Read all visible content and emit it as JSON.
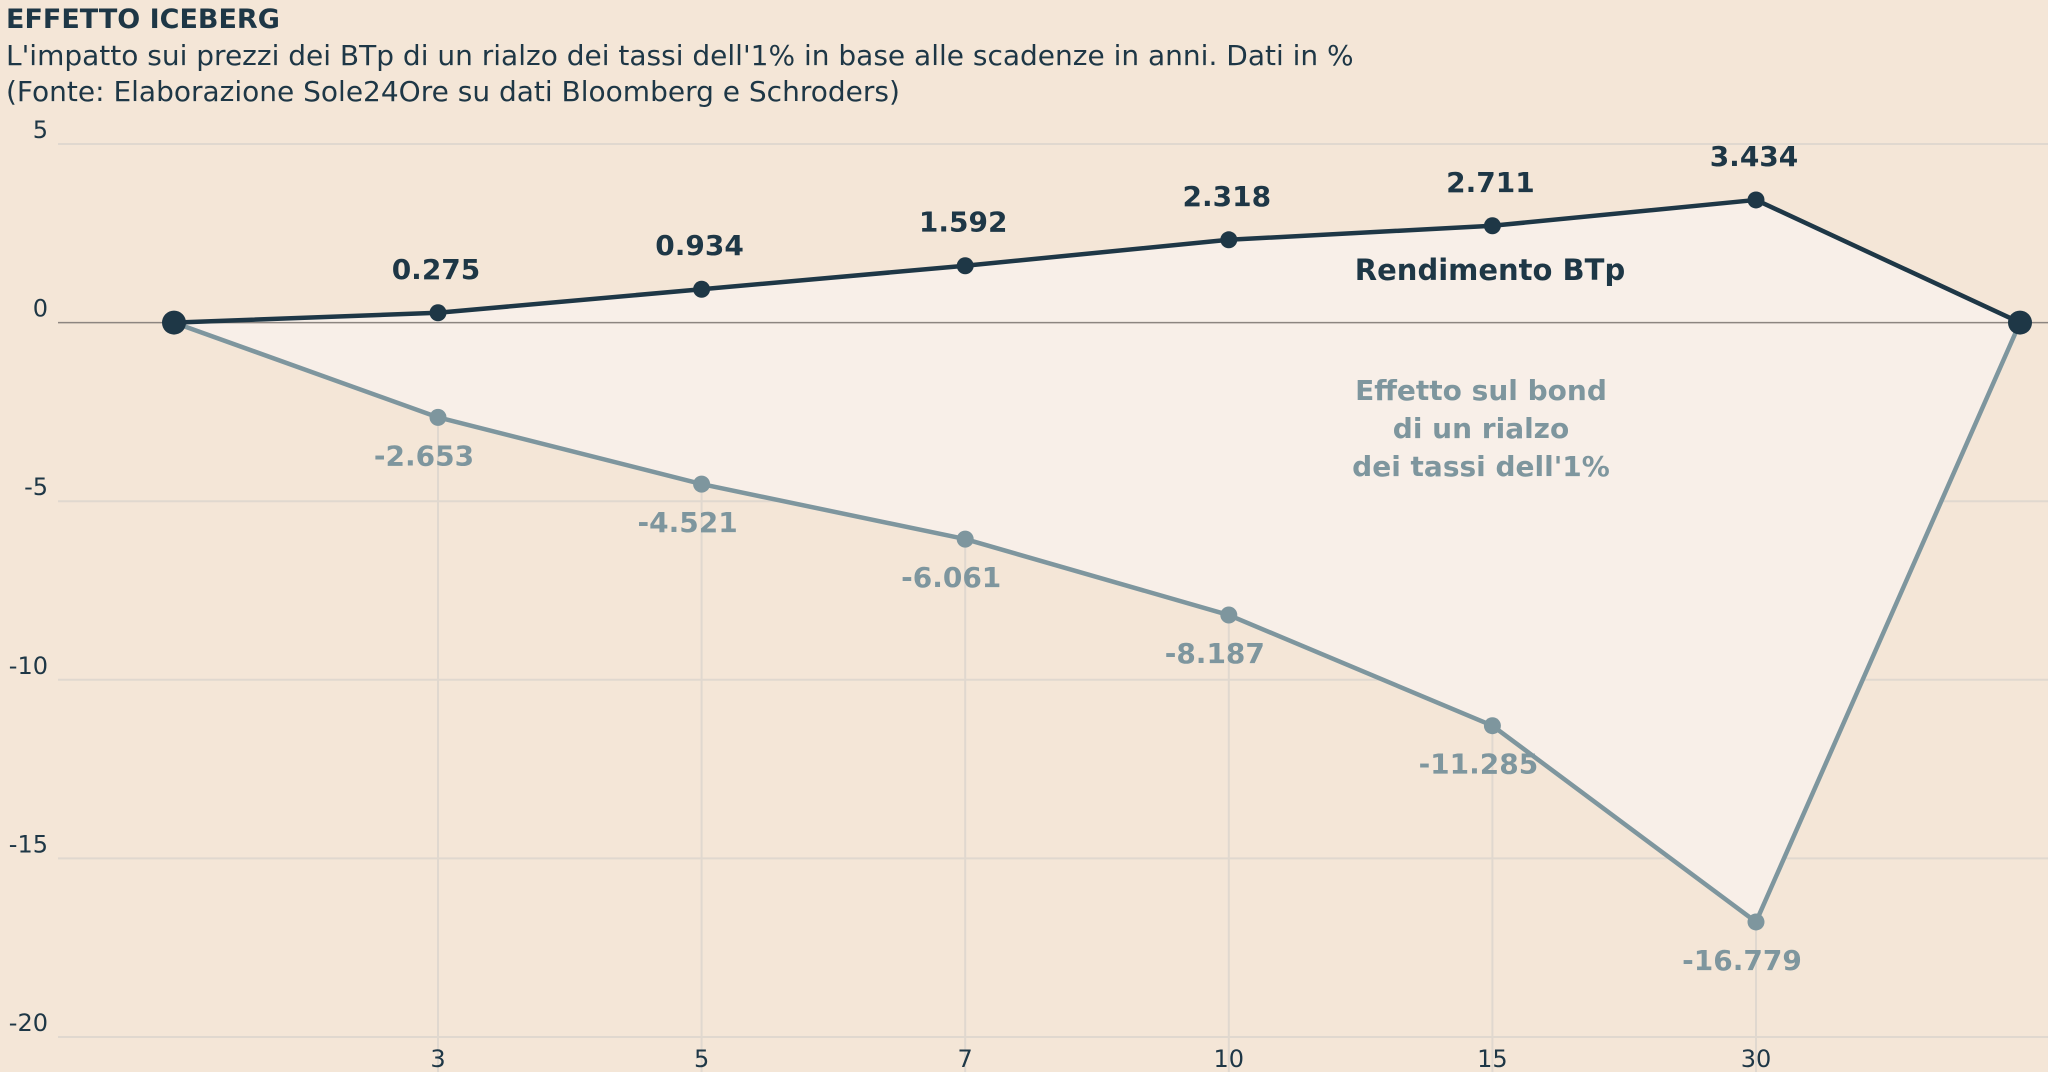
{
  "header": {
    "title": "EFFETTO ICEBERG",
    "subtitle": "L'impatto sui prezzi dei BTp di un rialzo dei tassi dell'1% in base alle scadenze in anni. Dati in %",
    "source": "(Fonte: Elaborazione Sole24Ore su dati Bloomberg e Schroders)"
  },
  "colors": {
    "background": "#f4e6d7",
    "grid": "#e0d8cf",
    "zero_line": "#8c8580",
    "area": "#f8efe8",
    "top_series": "#1e3746",
    "bottom_series": "#7e969e"
  },
  "chart_data": {
    "type": "line",
    "title": "EFFETTO ICEBERG",
    "xlabel": "",
    "ylabel": "",
    "ylim": [
      -20,
      5
    ],
    "y_ticks": [
      5,
      0,
      -5,
      -10,
      -15,
      -20
    ],
    "categories": [
      "3",
      "5",
      "7",
      "10",
      "15",
      "30"
    ],
    "series": [
      {
        "name": "Rendimento BTp",
        "values": [
          0.275,
          0.934,
          1.592,
          2.318,
          2.711,
          3.434
        ],
        "labels": [
          "0.275",
          "0.934",
          "1.592",
          "2.318",
          "2.711",
          "3.434"
        ]
      },
      {
        "name": "Effetto sul bond di un rialzo dei tassi dell'1%",
        "values": [
          -2.653,
          -4.521,
          -6.061,
          -8.187,
          -11.285,
          -16.779
        ],
        "labels": [
          "-2.653",
          "-4.521",
          "-6.061",
          "-8.187",
          "-11.285",
          "-16.779"
        ]
      }
    ],
    "endpoints": [
      0,
      0
    ],
    "annotations": {
      "top": "Rendimento BTp",
      "bottom_lines": [
        "Effetto sul bond",
        "di un rialzo",
        "dei tassi dell'1%"
      ]
    }
  }
}
